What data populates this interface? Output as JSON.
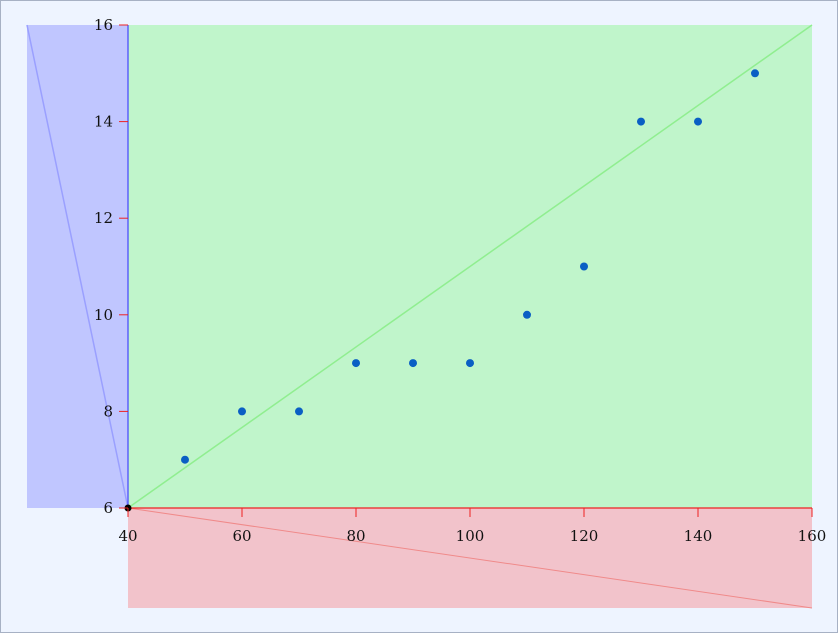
{
  "chart_data": {
    "type": "scatter",
    "title": "",
    "xlabel": "",
    "ylabel": "",
    "xlim": [
      40,
      160
    ],
    "ylim": [
      6,
      16
    ],
    "x_ticks": [
      40,
      60,
      80,
      100,
      120,
      140,
      160
    ],
    "y_ticks": [
      6,
      8,
      10,
      12,
      14,
      16
    ],
    "x_tick_labels": [
      "40",
      "60",
      "80",
      "100",
      "120",
      "140",
      "160"
    ],
    "y_tick_labels": [
      "6",
      "8",
      "10",
      "12",
      "14",
      "16"
    ],
    "grid": false,
    "series": [
      {
        "x": [
          50,
          60,
          70,
          80,
          90,
          100,
          110,
          120,
          130,
          140,
          150
        ],
        "y": [
          7,
          8,
          8,
          9,
          9,
          9,
          10,
          11,
          14,
          14,
          15
        ]
      }
    ],
    "trend_line": {
      "from": [
        40,
        6
      ],
      "to": [
        160,
        16
      ]
    },
    "colors": {
      "page_background": "#eef4ff",
      "green_region": "#c0f5cb",
      "green_line": "#90ee90",
      "blue_region": "#c0c6ff",
      "blue_line": "#9aa0ff",
      "blue_axis": "#4444ff",
      "red_region": "#f2c3cb",
      "red_line": "#f08a8a",
      "red_axis": "#ee2222",
      "tick_mark": "#ee2222",
      "point": "#0a5fc4",
      "origin_point": "#000000"
    }
  }
}
